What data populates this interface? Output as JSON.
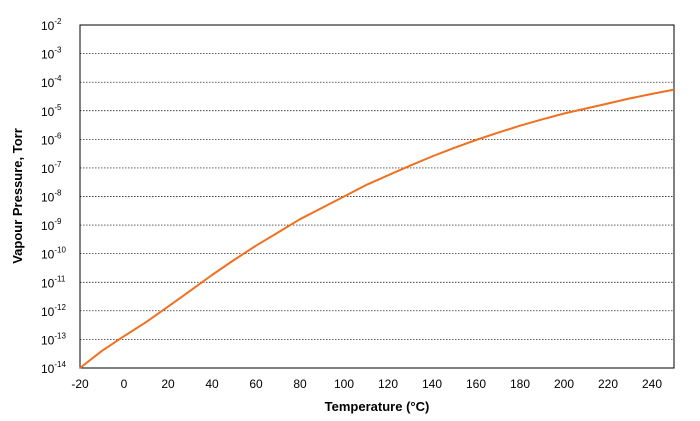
{
  "chart_data": {
    "type": "line",
    "title": "",
    "xlabel": "Temperature (°C)",
    "ylabel": "Vapour Pressure, Torr",
    "xlim": [
      -20,
      250
    ],
    "ylim_exponent": [
      -14,
      -2
    ],
    "y_scale": "log",
    "x_ticks": [
      "-20",
      "0",
      "20",
      "40",
      "60",
      "80",
      "100",
      "120",
      "140",
      "160",
      "180",
      "200",
      "220",
      "240"
    ],
    "y_ticks": [
      {
        "base": "10",
        "exp": "-14"
      },
      {
        "base": "10",
        "exp": "-13"
      },
      {
        "base": "10",
        "exp": "-12"
      },
      {
        "base": "10",
        "exp": "-11"
      },
      {
        "base": "10",
        "exp": "-10"
      },
      {
        "base": "10",
        "exp": "-9"
      },
      {
        "base": "10",
        "exp": "-8"
      },
      {
        "base": "10",
        "exp": "-7"
      },
      {
        "base": "10",
        "exp": "-6"
      },
      {
        "base": "10",
        "exp": "-5"
      },
      {
        "base": "10",
        "exp": "-4"
      },
      {
        "base": "10",
        "exp": "-3"
      },
      {
        "base": "10",
        "exp": "-2"
      }
    ],
    "grid": "horizontal dashed",
    "series": [
      {
        "color": "#f07020",
        "x": [
          -20,
          -10,
          0,
          10,
          20,
          30,
          40,
          50,
          60,
          70,
          80,
          90,
          100,
          110,
          120,
          130,
          140,
          150,
          160,
          170,
          180,
          190,
          200,
          210,
          220,
          230,
          240,
          250
        ],
        "y": [
          1e-14,
          4e-14,
          1.3e-13,
          4e-13,
          1.4e-12,
          5e-12,
          1.8e-11,
          6e-11,
          1.9e-10,
          5.5e-10,
          1.6e-09,
          4e-09,
          1e-08,
          2.5e-08,
          5.5e-08,
          1.2e-07,
          2.5e-07,
          5e-07,
          9.5e-07,
          1.7e-06,
          3e-06,
          5e-06,
          8e-06,
          1.2e-05,
          1.8e-05,
          2.7e-05,
          3.9e-05,
          5.5e-05
        ]
      }
    ]
  }
}
